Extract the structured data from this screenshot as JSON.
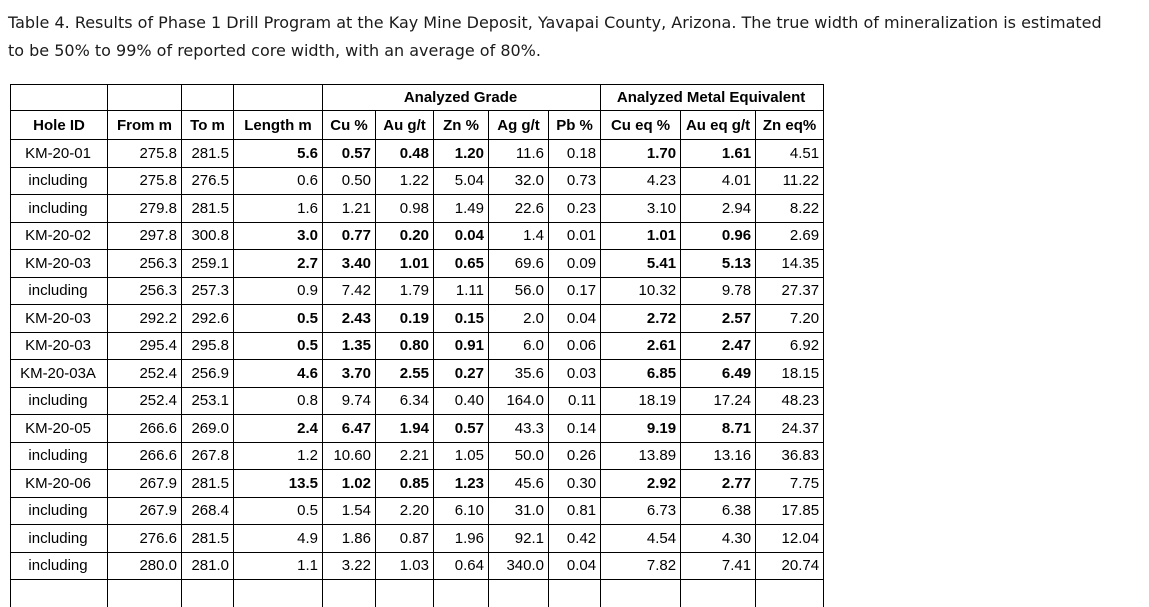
{
  "title": "Table 4. Results of Phase 1 Drill Program at the Kay Mine Deposit, Yavapai County, Arizona. The true width of mineralization is estimated to be 50% to 99% of reported core width, with an average of 80%.",
  "table": {
    "group_headers": [
      "Analyzed Grade",
      "Analyzed Metal Equivalent"
    ],
    "columns": [
      "Hole ID",
      "From m",
      "To m",
      "Length m",
      "Cu %",
      "Au g/t",
      "Zn %",
      "Ag g/t",
      "Pb %",
      "Cu eq %",
      "Au eq g/t",
      "Zn eq%"
    ],
    "rows": [
      {
        "hole": "KM-20-01",
        "from": "275.8",
        "to": "281.5",
        "length": "5.6",
        "cu": "0.57",
        "au": "0.48",
        "zn": "1.20",
        "ag": "11.6",
        "pb": "0.18",
        "cu_eq": "1.70",
        "au_eq": "1.61",
        "zn_eq": "4.51",
        "emphasis": true
      },
      {
        "hole": "including",
        "from": "275.8",
        "to": "276.5",
        "length": "0.6",
        "cu": "0.50",
        "au": "1.22",
        "zn": "5.04",
        "ag": "32.0",
        "pb": "0.73",
        "cu_eq": "4.23",
        "au_eq": "4.01",
        "zn_eq": "11.22",
        "emphasis": false
      },
      {
        "hole": "including",
        "from": "279.8",
        "to": "281.5",
        "length": "1.6",
        "cu": "1.21",
        "au": "0.98",
        "zn": "1.49",
        "ag": "22.6",
        "pb": "0.23",
        "cu_eq": "3.10",
        "au_eq": "2.94",
        "zn_eq": "8.22",
        "emphasis": false
      },
      {
        "hole": "KM-20-02",
        "from": "297.8",
        "to": "300.8",
        "length": "3.0",
        "cu": "0.77",
        "au": "0.20",
        "zn": "0.04",
        "ag": "1.4",
        "pb": "0.01",
        "cu_eq": "1.01",
        "au_eq": "0.96",
        "zn_eq": "2.69",
        "emphasis": true
      },
      {
        "hole": "KM-20-03",
        "from": "256.3",
        "to": "259.1",
        "length": "2.7",
        "cu": "3.40",
        "au": "1.01",
        "zn": "0.65",
        "ag": "69.6",
        "pb": "0.09",
        "cu_eq": "5.41",
        "au_eq": "5.13",
        "zn_eq": "14.35",
        "emphasis": true
      },
      {
        "hole": "including",
        "from": "256.3",
        "to": "257.3",
        "length": "0.9",
        "cu": "7.42",
        "au": "1.79",
        "zn": "1.11",
        "ag": "56.0",
        "pb": "0.17",
        "cu_eq": "10.32",
        "au_eq": "9.78",
        "zn_eq": "27.37",
        "emphasis": false
      },
      {
        "hole": "KM-20-03",
        "from": "292.2",
        "to": "292.6",
        "length": "0.5",
        "cu": "2.43",
        "au": "0.19",
        "zn": "0.15",
        "ag": "2.0",
        "pb": "0.04",
        "cu_eq": "2.72",
        "au_eq": "2.57",
        "zn_eq": "7.20",
        "emphasis": true
      },
      {
        "hole": "KM-20-03",
        "from": "295.4",
        "to": "295.8",
        "length": "0.5",
        "cu": "1.35",
        "au": "0.80",
        "zn": "0.91",
        "ag": "6.0",
        "pb": "0.06",
        "cu_eq": "2.61",
        "au_eq": "2.47",
        "zn_eq": "6.92",
        "emphasis": true
      },
      {
        "hole": "KM-20-03A",
        "from": "252.4",
        "to": "256.9",
        "length": "4.6",
        "cu": "3.70",
        "au": "2.55",
        "zn": "0.27",
        "ag": "35.6",
        "pb": "0.03",
        "cu_eq": "6.85",
        "au_eq": "6.49",
        "zn_eq": "18.15",
        "emphasis": true
      },
      {
        "hole": "including",
        "from": "252.4",
        "to": "253.1",
        "length": "0.8",
        "cu": "9.74",
        "au": "6.34",
        "zn": "0.40",
        "ag": "164.0",
        "pb": "0.11",
        "cu_eq": "18.19",
        "au_eq": "17.24",
        "zn_eq": "48.23",
        "emphasis": false
      },
      {
        "hole": "KM-20-05",
        "from": "266.6",
        "to": "269.0",
        "length": "2.4",
        "cu": "6.47",
        "au": "1.94",
        "zn": "0.57",
        "ag": "43.3",
        "pb": "0.14",
        "cu_eq": "9.19",
        "au_eq": "8.71",
        "zn_eq": "24.37",
        "emphasis": true
      },
      {
        "hole": "including",
        "from": "266.6",
        "to": "267.8",
        "length": "1.2",
        "cu": "10.60",
        "au": "2.21",
        "zn": "1.05",
        "ag": "50.0",
        "pb": "0.26",
        "cu_eq": "13.89",
        "au_eq": "13.16",
        "zn_eq": "36.83",
        "emphasis": false
      },
      {
        "hole": "KM-20-06",
        "from": "267.9",
        "to": "281.5",
        "length": "13.5",
        "cu": "1.02",
        "au": "0.85",
        "zn": "1.23",
        "ag": "45.6",
        "pb": "0.30",
        "cu_eq": "2.92",
        "au_eq": "2.77",
        "zn_eq": "7.75",
        "emphasis": true
      },
      {
        "hole": "including",
        "from": "267.9",
        "to": "268.4",
        "length": "0.5",
        "cu": "1.54",
        "au": "2.20",
        "zn": "6.10",
        "ag": "31.0",
        "pb": "0.81",
        "cu_eq": "6.73",
        "au_eq": "6.38",
        "zn_eq": "17.85",
        "emphasis": false
      },
      {
        "hole": "including",
        "from": "276.6",
        "to": "281.5",
        "length": "4.9",
        "cu": "1.86",
        "au": "0.87",
        "zn": "1.96",
        "ag": "92.1",
        "pb": "0.42",
        "cu_eq": "4.54",
        "au_eq": "4.30",
        "zn_eq": "12.04",
        "emphasis": false
      },
      {
        "hole": "including",
        "from": "280.0",
        "to": "281.0",
        "length": "1.1",
        "cu": "3.22",
        "au": "1.03",
        "zn": "0.64",
        "ag": "340.0",
        "pb": "0.04",
        "cu_eq": "7.82",
        "au_eq": "7.41",
        "zn_eq": "20.74",
        "emphasis": false
      }
    ]
  }
}
